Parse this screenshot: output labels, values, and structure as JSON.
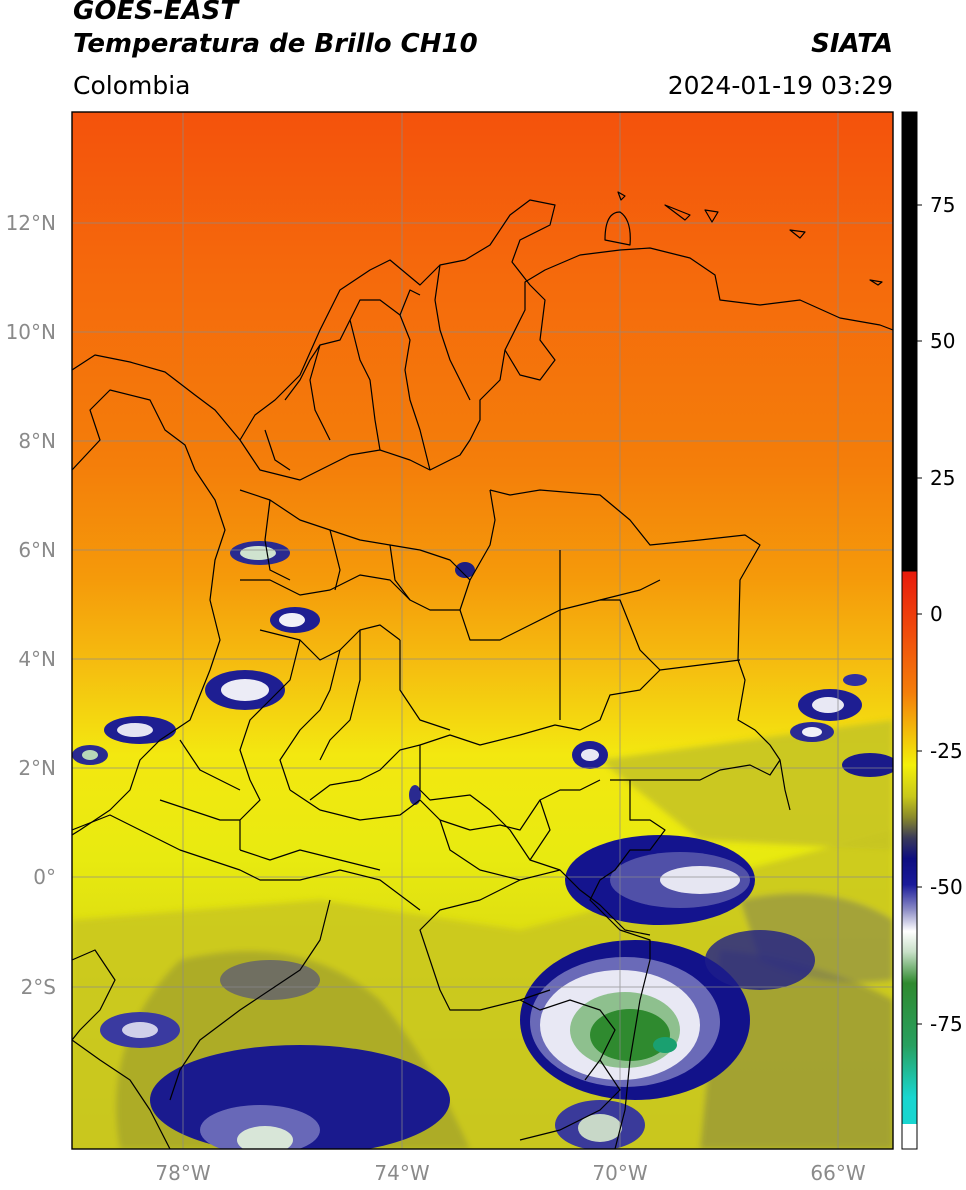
{
  "header": {
    "satellite": "GOES-EAST",
    "product": "Temperatura de Brillo CH10",
    "region": "Colombia",
    "organization": "SIATA",
    "datetime": "2024-01-19 03:29"
  },
  "map": {
    "lon_range": [
      -80,
      -65
    ],
    "lat_range": [
      -5.0,
      14.0
    ],
    "lat_ticks": [
      "12°N",
      "10°N",
      "8°N",
      "6°N",
      "4°N",
      "2°N",
      "0°",
      "2°S"
    ],
    "lon_ticks": [
      "78°W",
      "74°W",
      "70°W",
      "66°W"
    ],
    "grid": true
  },
  "colorbar": {
    "ticks": [
      "75",
      "50",
      "25",
      "0",
      "-25",
      "-50",
      "-75"
    ],
    "colors": {
      "black": "#000000",
      "red": "#e81a0c",
      "orange": "#f47e0a",
      "yellow": "#f3f00a",
      "olive": "#a5a51e",
      "navy": "#0d0d80",
      "white": "#ffffff",
      "green": "#2f8a2f",
      "cyan": "#18d6d0"
    }
  }
}
